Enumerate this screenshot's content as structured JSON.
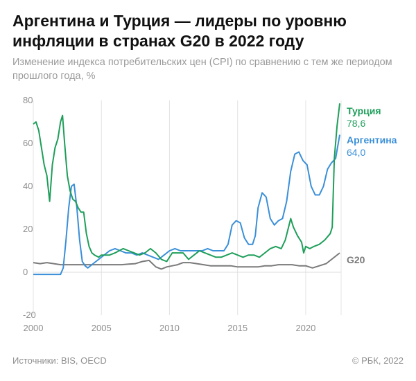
{
  "header": {
    "title": "Аргентина и Турция — лидеры по уровню инфляции в странах G20 в 2022 году",
    "subtitle": "Изменение индекса потребительских цен (CPI) по сравнению с тем же периодом прошлого года, %"
  },
  "footer": {
    "source": "Источники: BIS, OECD",
    "copyright": "© РБК, 2022"
  },
  "chart_data": {
    "type": "line",
    "xlim": [
      2000,
      2022.6
    ],
    "ylim": [
      -20,
      80
    ],
    "x_ticks": [
      2000,
      2005,
      2010,
      2015,
      2020
    ],
    "y_ticks": [
      -20,
      0,
      20,
      40,
      60,
      80
    ],
    "grid": "vertical",
    "xlabel": "",
    "ylabel": "",
    "series": [
      {
        "name": "Турция",
        "value_label": "78,6",
        "color": "#1e9e5a",
        "x": [
          2000,
          2000.2,
          2000.4,
          2000.6,
          2000.8,
          2001,
          2001.2,
          2001.4,
          2001.6,
          2001.8,
          2002,
          2002.15,
          2002.3,
          2002.5,
          2002.7,
          2002.9,
          2003.1,
          2003.3,
          2003.5,
          2003.7,
          2003.9,
          2004.1,
          2004.3,
          2004.5,
          2004.8,
          2005,
          2005.3,
          2005.6,
          2006,
          2006.3,
          2006.6,
          2007,
          2007.4,
          2007.8,
          2008.2,
          2008.6,
          2009,
          2009.4,
          2009.8,
          2010.2,
          2010.6,
          2011,
          2011.4,
          2011.8,
          2012.2,
          2012.6,
          2013,
          2013.4,
          2013.8,
          2014.2,
          2014.6,
          2015,
          2015.4,
          2015.8,
          2016.2,
          2016.6,
          2017,
          2017.4,
          2017.8,
          2018.2,
          2018.5,
          2018.7,
          2018.9,
          2019.1,
          2019.4,
          2019.7,
          2019.85,
          2020,
          2020.3,
          2020.6,
          2021,
          2021.4,
          2021.8,
          2021.95,
          2022.1,
          2022.3,
          2022.5
        ],
        "y": [
          69,
          70,
          66,
          58,
          50,
          45,
          33,
          50,
          58,
          62,
          70,
          73,
          60,
          45,
          38,
          34,
          33,
          30,
          28,
          28,
          18,
          12,
          9,
          8,
          7,
          8,
          8,
          8,
          9,
          10,
          11,
          10,
          9,
          8,
          9,
          11,
          9,
          6,
          5,
          9,
          9,
          9,
          6,
          8,
          10,
          9,
          8,
          7,
          7,
          8,
          9,
          8,
          7,
          8,
          8,
          7,
          9,
          11,
          12,
          11,
          15,
          20,
          25,
          21,
          17,
          14,
          9,
          12,
          11,
          12,
          13,
          15,
          18,
          21,
          53,
          68,
          78.6
        ]
      },
      {
        "name": "Аргентина",
        "value_label": "64,0",
        "color": "#3a8fd8",
        "x": [
          2000,
          2000.5,
          2001,
          2001.5,
          2002,
          2002.2,
          2002.4,
          2002.6,
          2002.8,
          2003,
          2003.2,
          2003.4,
          2003.6,
          2003.8,
          2004,
          2004.4,
          2004.8,
          2005.2,
          2005.6,
          2006,
          2006.4,
          2006.8,
          2007.2,
          2007.6,
          2008,
          2008.4,
          2008.8,
          2009.2,
          2009.6,
          2010,
          2010.4,
          2010.8,
          2011.2,
          2011.6,
          2012,
          2012.4,
          2012.8,
          2013.2,
          2013.6,
          2014,
          2014.3,
          2014.6,
          2014.9,
          2015.2,
          2015.5,
          2015.8,
          2016.1,
          2016.3,
          2016.5,
          2016.8,
          2017.1,
          2017.4,
          2017.7,
          2018,
          2018.3,
          2018.6,
          2018.9,
          2019.2,
          2019.5,
          2019.8,
          2020.1,
          2020.4,
          2020.7,
          2021,
          2021.3,
          2021.6,
          2021.9,
          2022.2,
          2022.5
        ],
        "y": [
          -1,
          -1,
          -1,
          -1,
          -1,
          2,
          15,
          30,
          40,
          41,
          30,
          15,
          5,
          3,
          2,
          4,
          6,
          8,
          10,
          11,
          10,
          9,
          9,
          8,
          9,
          8,
          7,
          6,
          8,
          10,
          11,
          10,
          10,
          10,
          10,
          10,
          11,
          10,
          10,
          10,
          13,
          22,
          24,
          23,
          16,
          13,
          13,
          17,
          30,
          37,
          35,
          25,
          22,
          24,
          25,
          33,
          47,
          55,
          56,
          52,
          50,
          40,
          36,
          36,
          40,
          48,
          51,
          53,
          64
        ]
      },
      {
        "name": "G20",
        "color": "#7a7a7a",
        "x": [
          2000,
          2000.5,
          2001,
          2001.5,
          2002,
          2002.5,
          2003,
          2003.5,
          2004,
          2004.5,
          2005,
          2005.5,
          2006,
          2006.5,
          2007,
          2007.5,
          2008,
          2008.5,
          2009,
          2009.4,
          2009.8,
          2010.2,
          2010.6,
          2011,
          2011.5,
          2012,
          2012.5,
          2013,
          2013.5,
          2014,
          2014.5,
          2015,
          2015.5,
          2016,
          2016.5,
          2017,
          2017.5,
          2018,
          2018.5,
          2019,
          2019.5,
          2020,
          2020.5,
          2021,
          2021.5,
          2022,
          2022.5
        ],
        "y": [
          4.5,
          4,
          4.5,
          4,
          3.5,
          3.5,
          3.5,
          3.5,
          3.5,
          3.5,
          3.5,
          3.5,
          3.5,
          3.5,
          3.8,
          4,
          5,
          5.5,
          2.5,
          1.5,
          2.5,
          3,
          3.5,
          4.5,
          4.5,
          4,
          3.5,
          3,
          3,
          3,
          3,
          2.5,
          2.5,
          2.5,
          2.5,
          3,
          3,
          3.5,
          3.5,
          3.5,
          3,
          3,
          2,
          3,
          4,
          6.5,
          9
        ]
      }
    ]
  }
}
